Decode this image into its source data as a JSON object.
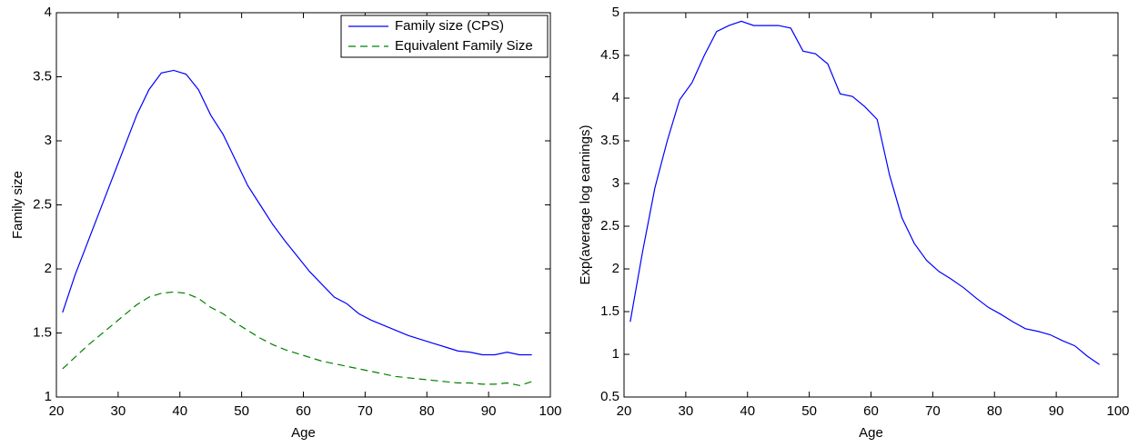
{
  "chart_data": [
    {
      "type": "line",
      "xlabel": "Age",
      "ylabel": "Family size",
      "x": [
        21,
        23,
        25,
        27,
        29,
        31,
        33,
        35,
        37,
        39,
        41,
        43,
        45,
        47,
        49,
        51,
        53,
        55,
        57,
        59,
        61,
        63,
        65,
        67,
        69,
        71,
        73,
        75,
        77,
        79,
        81,
        83,
        85,
        87,
        89,
        91,
        93,
        95,
        97
      ],
      "series": [
        {
          "name": "Family size (CPS)",
          "color": "#0000ff",
          "linestyle": "solid",
          "values": [
            1.66,
            1.95,
            2.2,
            2.45,
            2.7,
            2.95,
            3.2,
            3.4,
            3.53,
            3.55,
            3.52,
            3.4,
            3.2,
            3.05,
            2.85,
            2.65,
            2.5,
            2.35,
            2.22,
            2.1,
            1.98,
            1.88,
            1.78,
            1.73,
            1.65,
            1.6,
            1.56,
            1.52,
            1.48,
            1.45,
            1.42,
            1.39,
            1.36,
            1.35,
            1.33,
            1.33,
            1.35,
            1.33,
            1.33
          ]
        },
        {
          "name": "Equivalent Family Size",
          "color": "#008000",
          "linestyle": "dashed",
          "values": [
            1.22,
            1.31,
            1.4,
            1.48,
            1.56,
            1.64,
            1.72,
            1.78,
            1.81,
            1.82,
            1.81,
            1.77,
            1.7,
            1.65,
            1.58,
            1.52,
            1.46,
            1.41,
            1.37,
            1.34,
            1.31,
            1.28,
            1.26,
            1.24,
            1.22,
            1.2,
            1.18,
            1.16,
            1.15,
            1.14,
            1.13,
            1.12,
            1.11,
            1.11,
            1.1,
            1.1,
            1.11,
            1.09,
            1.12
          ]
        }
      ],
      "xlim": [
        20,
        100
      ],
      "xticks": [
        20,
        30,
        40,
        50,
        60,
        70,
        80,
        90,
        100
      ],
      "ylim": [
        1,
        4
      ],
      "yticks": [
        1,
        1.5,
        2,
        2.5,
        3,
        3.5,
        4
      ],
      "legend": "top-right",
      "grid": false
    },
    {
      "type": "line",
      "xlabel": "Age",
      "ylabel": "Exp(average log earnings)",
      "x": [
        21,
        23,
        25,
        27,
        29,
        31,
        33,
        35,
        37,
        39,
        41,
        43,
        45,
        47,
        49,
        51,
        53,
        55,
        57,
        59,
        61,
        63,
        65,
        67,
        69,
        71,
        73,
        75,
        77,
        79,
        81,
        83,
        85,
        87,
        89,
        91,
        93,
        95,
        97
      ],
      "series": [
        {
          "color": "#0000ff",
          "linestyle": "solid",
          "values": [
            1.38,
            2.2,
            2.95,
            3.5,
            3.98,
            4.18,
            4.5,
            4.78,
            4.85,
            4.9,
            4.85,
            4.85,
            4.85,
            4.82,
            4.55,
            4.52,
            4.4,
            4.05,
            4.02,
            3.9,
            3.75,
            3.1,
            2.6,
            2.3,
            2.1,
            1.97,
            1.88,
            1.78,
            1.66,
            1.55,
            1.47,
            1.38,
            1.3,
            1.27,
            1.23,
            1.16,
            1.1,
            0.98,
            0.88
          ]
        }
      ],
      "xlim": [
        20,
        100
      ],
      "xticks": [
        20,
        30,
        40,
        50,
        60,
        70,
        80,
        90,
        100
      ],
      "ylim": [
        0.5,
        5
      ],
      "yticks": [
        0.5,
        1,
        1.5,
        2,
        2.5,
        3,
        3.5,
        4,
        4.5,
        5
      ],
      "grid": false
    }
  ]
}
